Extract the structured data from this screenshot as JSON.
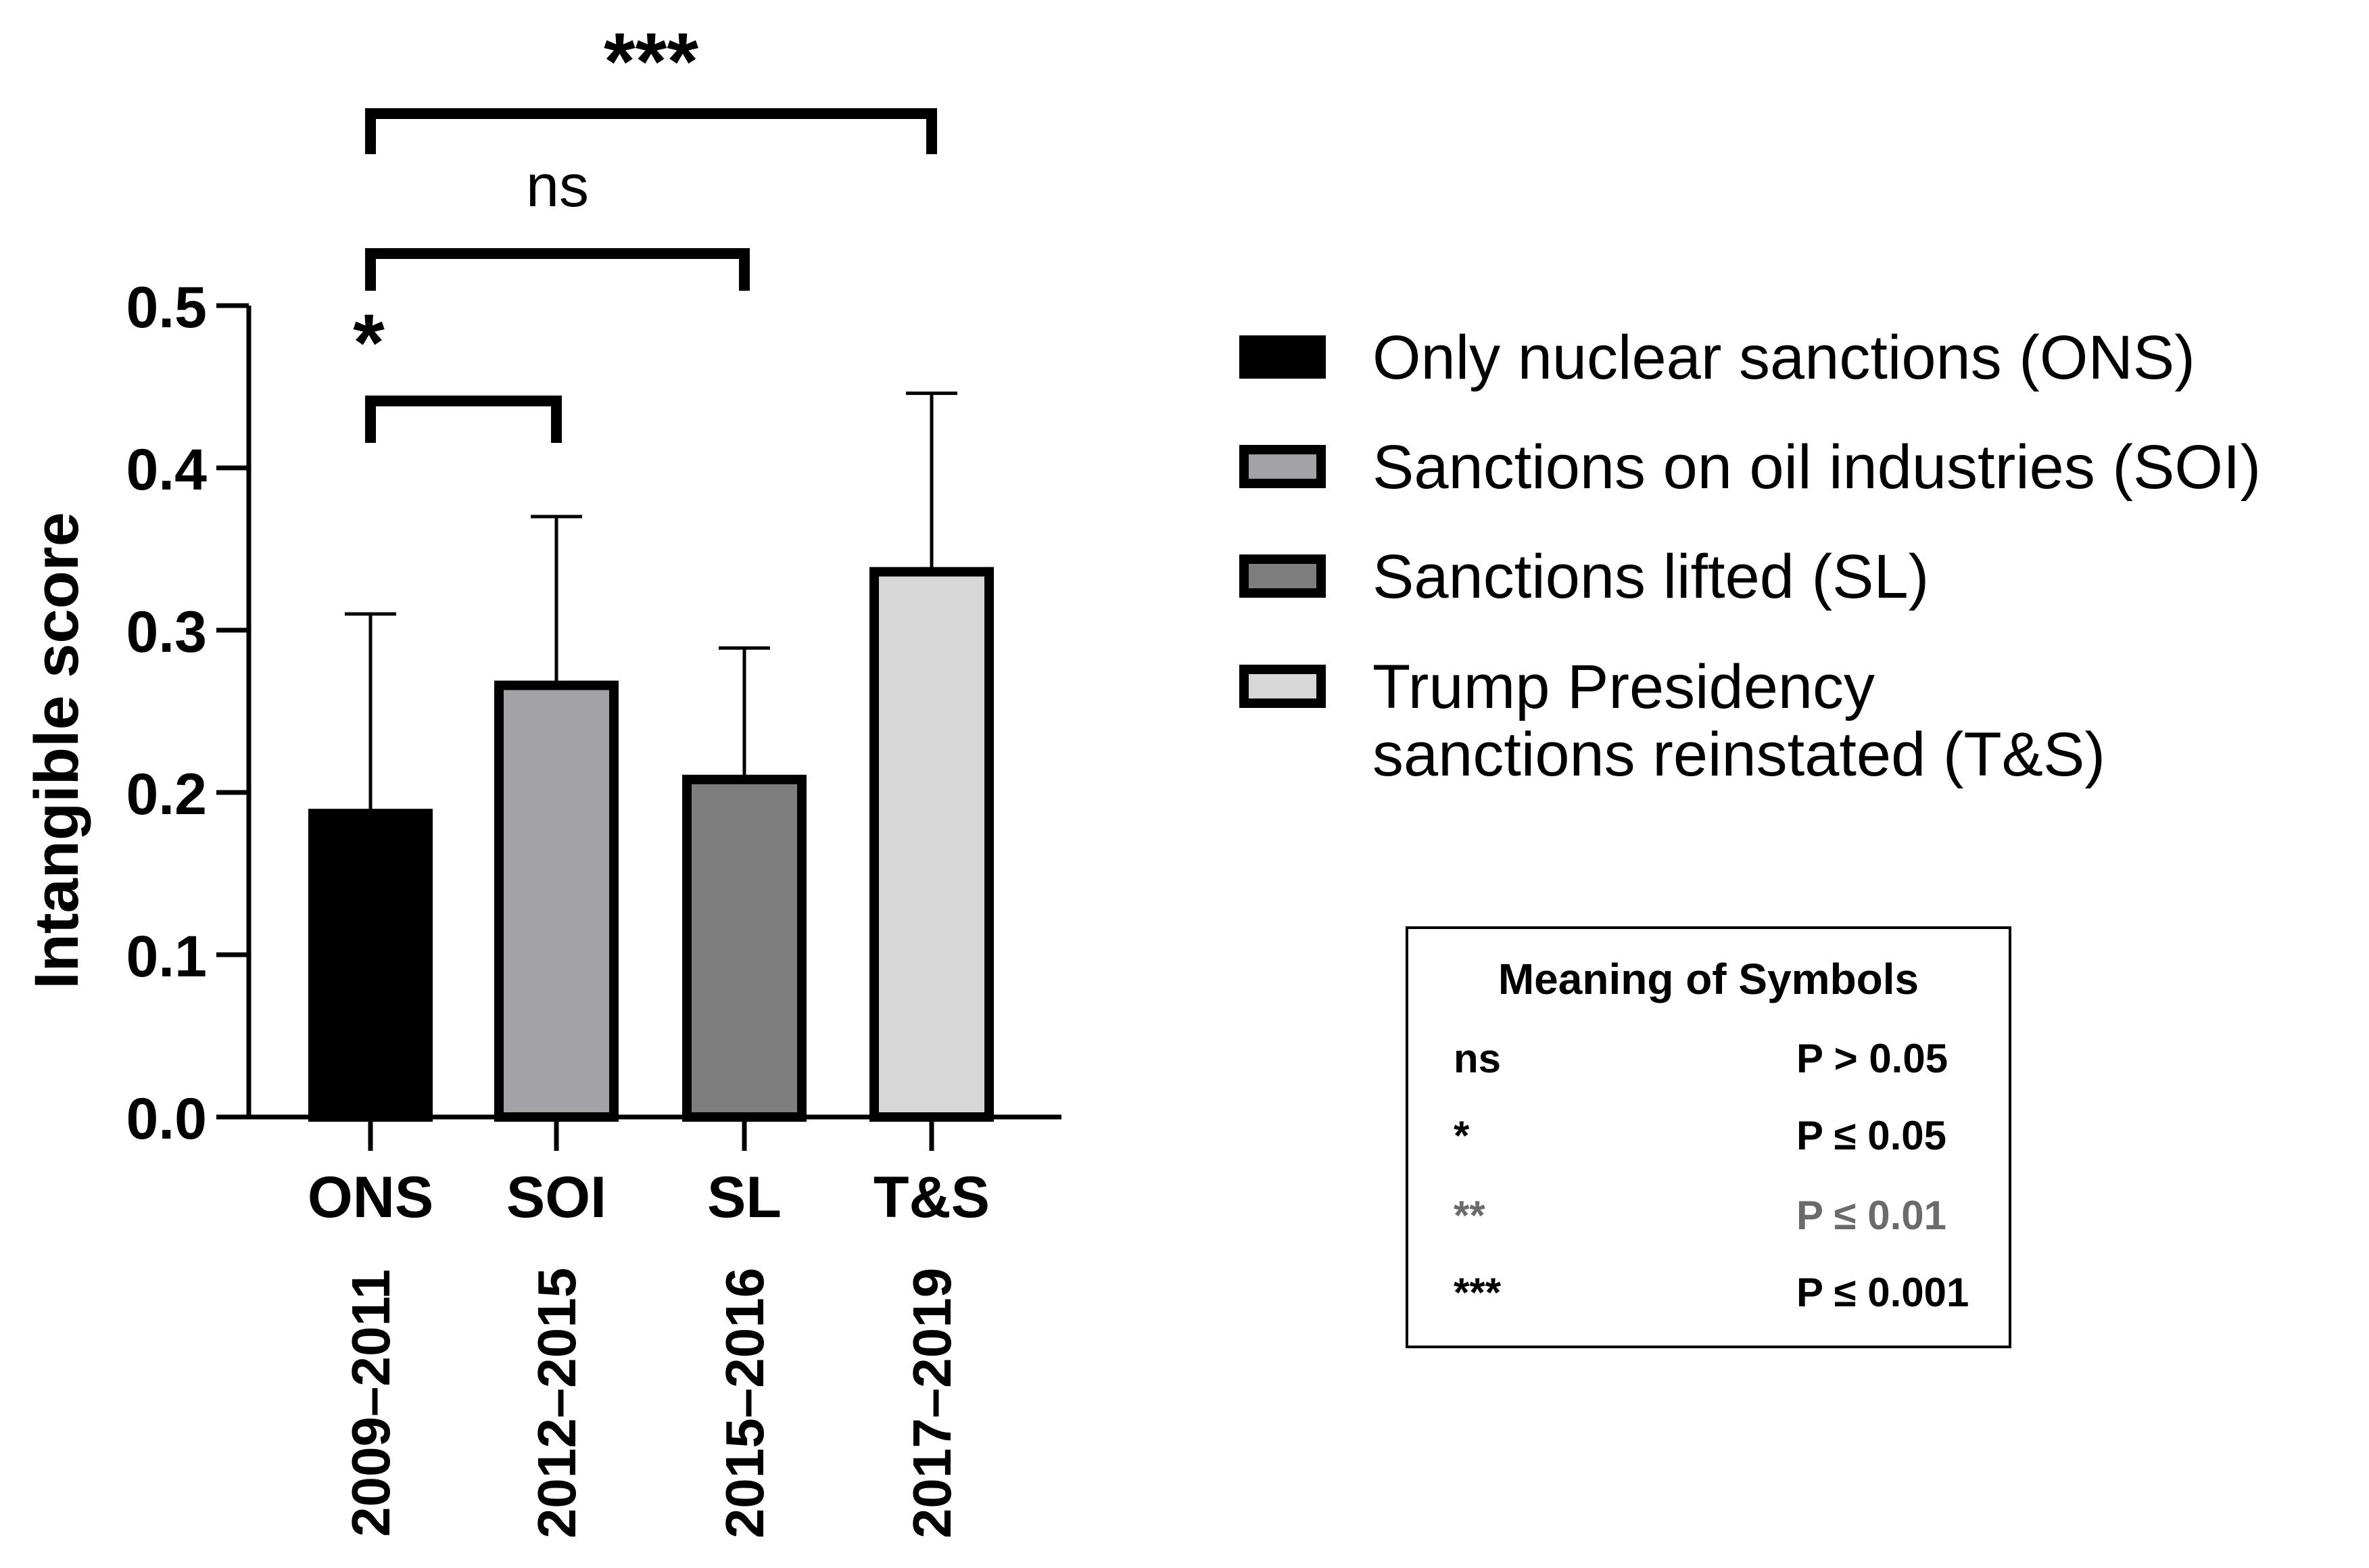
{
  "chart_data": {
    "type": "bar",
    "ylabel": "Intangible score",
    "ylim": [
      0,
      0.5
    ],
    "yticks": [
      "0.0",
      "0.1",
      "0.2",
      "0.3",
      "0.4",
      "0.5"
    ],
    "categories": [
      "ONS",
      "SOI",
      "SL",
      "T&S"
    ],
    "category_years": [
      "2009–2011",
      "2012–2015",
      "2015–2016",
      "2017–2019"
    ],
    "values": [
      0.187,
      0.266,
      0.208,
      0.336
    ],
    "error_upper": [
      0.31,
      0.37,
      0.289,
      0.446
    ],
    "bar_colors": [
      "#000000",
      "#a3a2a7",
      "#7e7e7e",
      "#d7d7d7"
    ],
    "significance": [
      {
        "from": 0,
        "to": 1,
        "label": "*"
      },
      {
        "from": 0,
        "to": 2,
        "label": "ns"
      },
      {
        "from": 0,
        "to": 3,
        "label": "***"
      }
    ],
    "legend": [
      {
        "label": "Only nuclear sanctions (ONS)",
        "color": "#000000"
      },
      {
        "label": "Sanctions on oil industries (SOI)",
        "color": "#a3a2a7"
      },
      {
        "label": "Sanctions lifted (SL)",
        "color": "#7e7e7e"
      },
      {
        "label": "Trump Presidency",
        "label2": " sanctions reinstated (T&S)",
        "color": "#d7d7d7"
      }
    ],
    "legend_placement": "right",
    "grid": false
  },
  "symbols_box": {
    "title": "Meaning of  Symbols",
    "rows": [
      {
        "symbol": "ns",
        "meaning": "P > 0.05",
        "color": "#000000"
      },
      {
        "symbol": "*",
        "meaning": "P ≤ 0.05",
        "color": "#000000"
      },
      {
        "symbol": "**",
        "meaning": "P ≤ 0.01",
        "color": "#6b6b6b"
      },
      {
        "symbol": "***",
        "meaning": "P ≤ 0.001",
        "color": "#000000"
      }
    ]
  }
}
